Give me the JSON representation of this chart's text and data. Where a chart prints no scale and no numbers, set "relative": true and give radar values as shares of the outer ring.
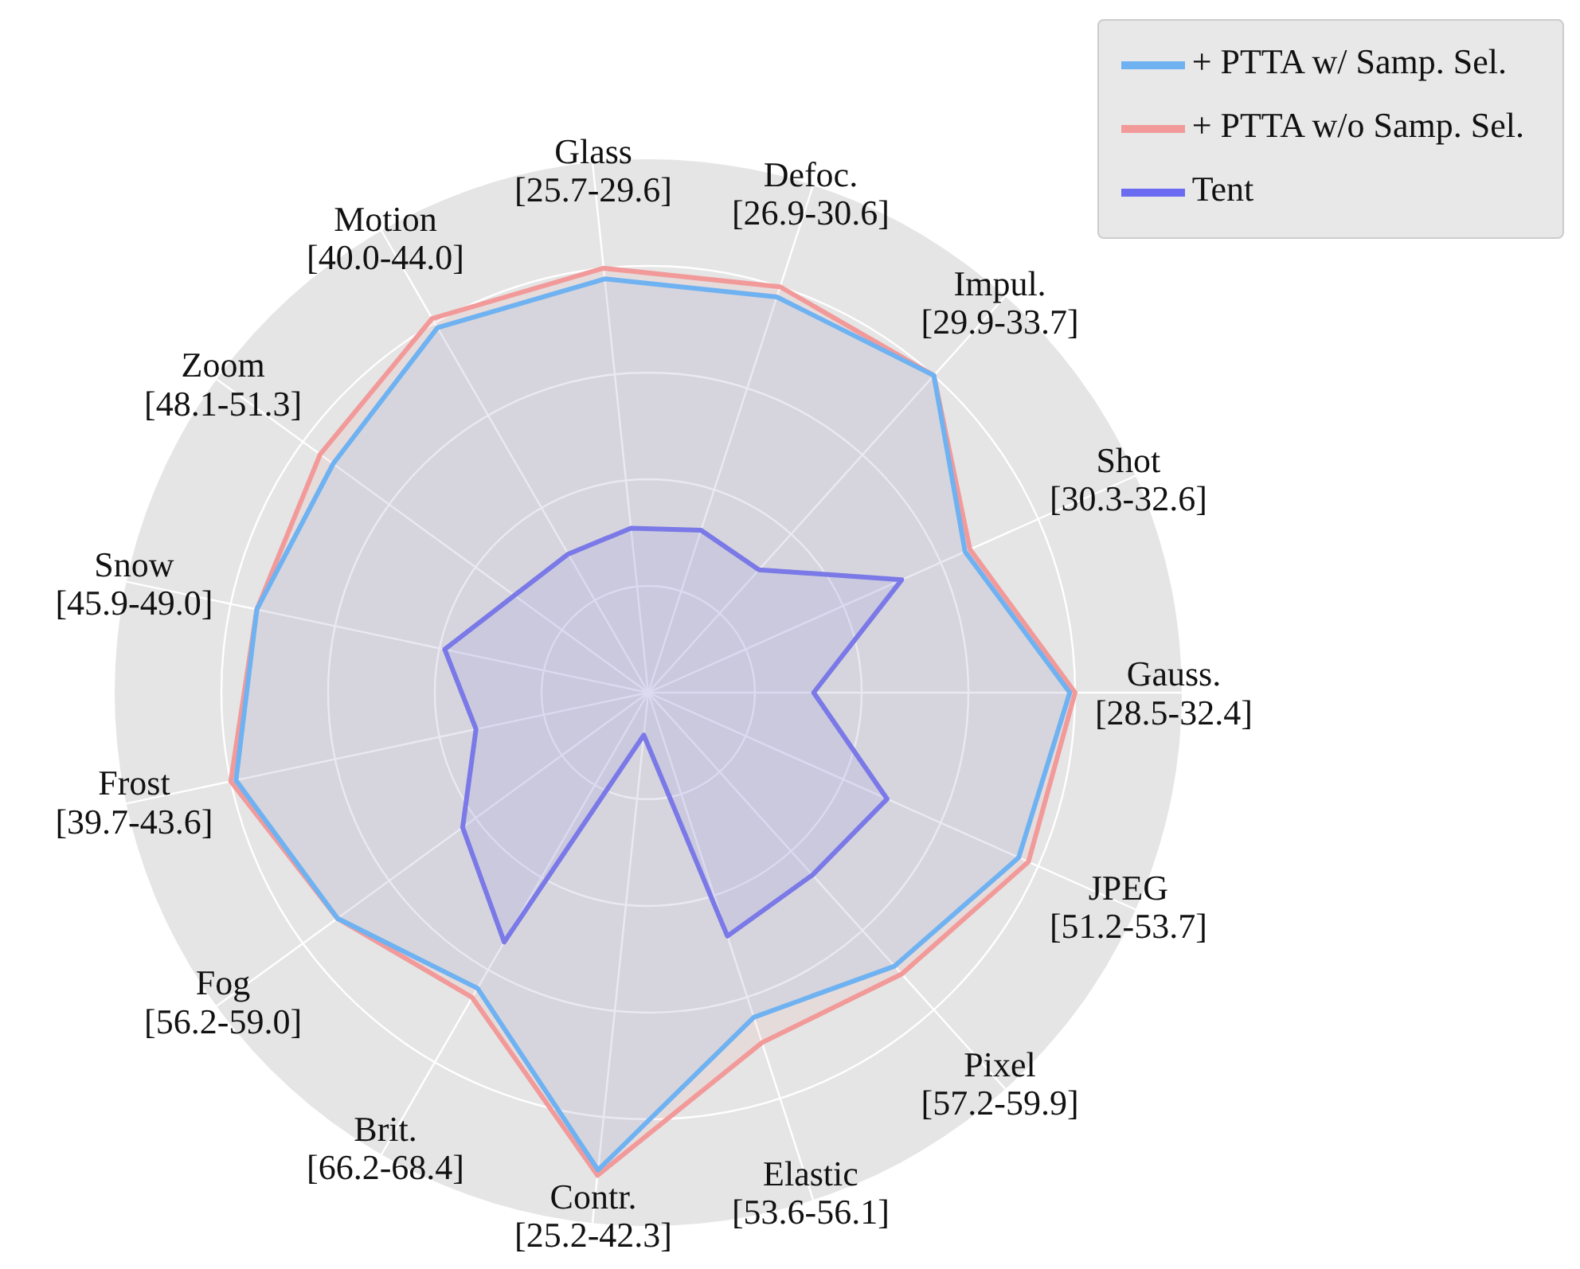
{
  "chart_data": {
    "type": "radar",
    "relative": true,
    "grid": true,
    "legend": "top right",
    "categories": [
      "Glass\n[25.7-29.6]",
      "Defoc.\n[26.9-30.6]",
      "Impul.\n[29.9-33.7]",
      "Shot\n[30.3-32.6]",
      "Gauss.\n[28.5-32.4]",
      "JPEG\n[51.2-53.7]",
      "Pixel\n[57.2-59.9]",
      "Elastic\n[53.6-56.1]",
      "Contr.\n[25.2-42.3]",
      "Brit.\n[66.2-68.4]",
      "Fog\n[56.2-59.0]",
      "Frost\n[39.7-43.6]",
      "Snow\n[45.9-49.0]",
      "Zoom\n[48.1-51.3]",
      "Motion\n[40.0-44.0]"
    ],
    "series": [
      {
        "name": "Tent",
        "color": "#6b6bf2",
        "values": [
          0.31,
          0.32,
          0.31,
          0.52,
          0.31,
          0.49,
          0.46,
          0.48,
          0.08,
          0.54,
          0.43,
          0.33,
          0.39,
          0.31,
          0.3
        ]
      },
      {
        "name": "+ PTTA w/o Samp. Sel.",
        "color": "#f29a9a",
        "values": [
          0.8,
          0.8,
          0.8,
          0.66,
          0.8,
          0.78,
          0.71,
          0.69,
          0.91,
          0.66,
          0.72,
          0.8,
          0.75,
          0.76,
          0.81
        ]
      },
      {
        "name": "+ PTTA w/ Samp. Sel.",
        "color": "#6fb2f2",
        "values": [
          0.78,
          0.78,
          0.8,
          0.65,
          0.79,
          0.76,
          0.69,
          0.64,
          0.9,
          0.64,
          0.72,
          0.79,
          0.75,
          0.73,
          0.79
        ]
      }
    ]
  }
}
